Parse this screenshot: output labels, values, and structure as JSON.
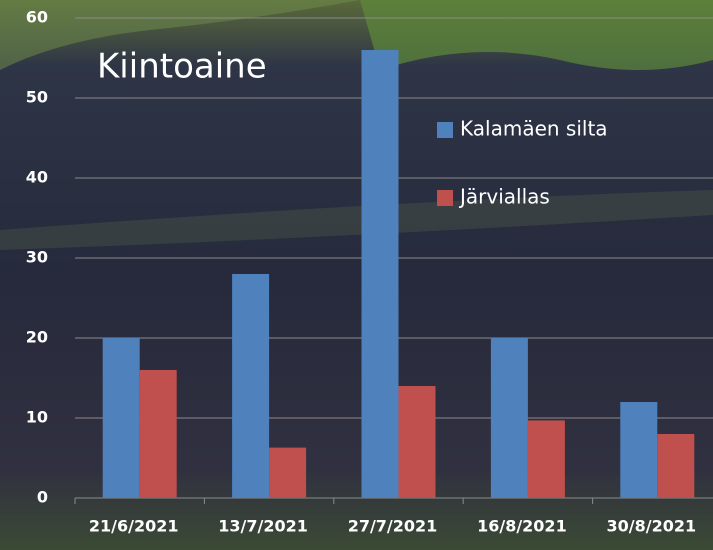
{
  "chart_data": {
    "type": "bar",
    "title": "Kiintoaine",
    "categories": [
      "21/6/2021",
      "13/7/2021",
      "27/7/2021",
      "16/8/2021",
      "30/8/2021"
    ],
    "series": [
      {
        "name": "Kalamäen silta",
        "color": "#4f81bd",
        "values": [
          20,
          28,
          56,
          20,
          12
        ]
      },
      {
        "name": "Järviallas",
        "color": "#c0504d",
        "values": [
          16,
          6.3,
          14,
          9.7,
          8
        ]
      }
    ],
    "ylim": [
      0,
      60
    ],
    "yticks": [
      0,
      10,
      20,
      30,
      40,
      50,
      60
    ],
    "grid": true
  }
}
